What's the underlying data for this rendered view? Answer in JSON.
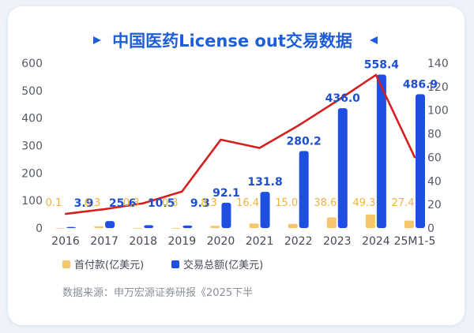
{
  "title": "中国医药License out交易数据",
  "legend": {
    "first_payment": "首付款(亿美元)",
    "total": "交易总额(亿美元)"
  },
  "source": "数据来源：申万宏源证券研报《2025下半",
  "colors": {
    "first_payment": "#f5c66c",
    "total": "#1f4fe0",
    "line": "#d61f1f",
    "title": "#1f5fd6"
  },
  "chart_data": {
    "type": "bar",
    "categories": [
      "2016",
      "2017",
      "2018",
      "2019",
      "2020",
      "2021",
      "2022",
      "2023",
      "2024",
      "25M1-5"
    ],
    "series": [
      {
        "name": "首付款(亿美元)",
        "axis": "left",
        "values": [
          0.1,
          6.3,
          0.3,
          0.3,
          8.3,
          16.4,
          15.0,
          38.6,
          49.3,
          27.4
        ],
        "labels": [
          "0.1",
          "6.3",
          "0.3",
          "0.3",
          "8.3",
          "16.4",
          "15.0",
          "38.6",
          "49.3",
          "27.4"
        ]
      },
      {
        "name": "交易总额(亿美元)",
        "axis": "left",
        "values": [
          3.9,
          25.6,
          10.5,
          9.3,
          92.1,
          131.8,
          280.2,
          436.0,
          558.4,
          486.9
        ],
        "labels": [
          "3.9",
          "25.6",
          "10.5",
          "9.3",
          "92.1",
          "131.8",
          "280.2",
          "436.0",
          "558.4",
          "486.9"
        ]
      },
      {
        "type": "line",
        "axis": "right",
        "values": [
          12,
          16,
          21,
          31,
          75,
          68,
          87,
          108,
          130,
          60
        ]
      }
    ],
    "y_left": {
      "ticks": [
        "0",
        "100",
        "200",
        "300",
        "400",
        "500",
        "600"
      ],
      "min": 0,
      "max": 600
    },
    "y_right": {
      "ticks": [
        "0",
        "20",
        "40",
        "60",
        "80",
        "100",
        "120",
        "140"
      ],
      "min": 0,
      "max": 140
    },
    "grid": false,
    "legend_position": "bottom"
  }
}
